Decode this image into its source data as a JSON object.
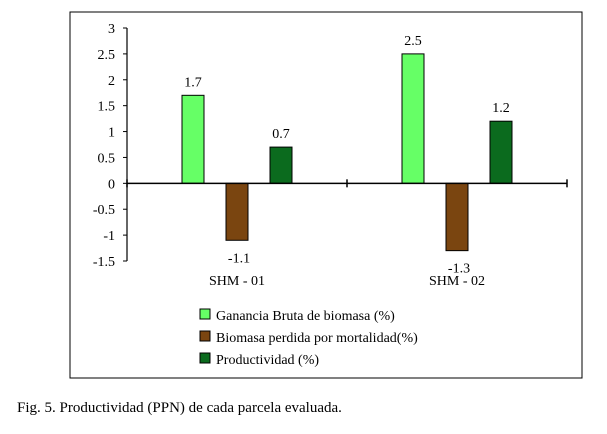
{
  "chart_data": {
    "type": "bar",
    "categories": [
      "SHM - 01",
      "SHM - 02"
    ],
    "series": [
      {
        "name": "Ganancia Bruta de biomasa (%)",
        "values": [
          1.7,
          2.5
        ],
        "color": "#66ff66"
      },
      {
        "name": "Biomasa perdida por mortalidad(%)",
        "values": [
          -1.1,
          -1.3
        ],
        "color": "#7a4510"
      },
      {
        "name": "Productividad  (%)",
        "values": [
          0.7,
          1.2
        ],
        "color": "#0b6b1e"
      }
    ],
    "data_labels": [
      [
        "1.7",
        "2.5"
      ],
      [
        "-1.1",
        "-1.3"
      ],
      [
        "0.7",
        "1.2"
      ]
    ],
    "yticks": [
      "3",
      "2.5",
      "2",
      "1.5",
      "1",
      "0.5",
      "0",
      "-0.5",
      "-1",
      "-1.5"
    ],
    "ylim": [
      -1.5,
      3
    ],
    "title": "",
    "xlabel": "",
    "ylabel": "",
    "grid": false,
    "legend_position": "bottom-center"
  },
  "caption": "Fig. 5. Productividad (PPN) de cada parcela evaluada."
}
